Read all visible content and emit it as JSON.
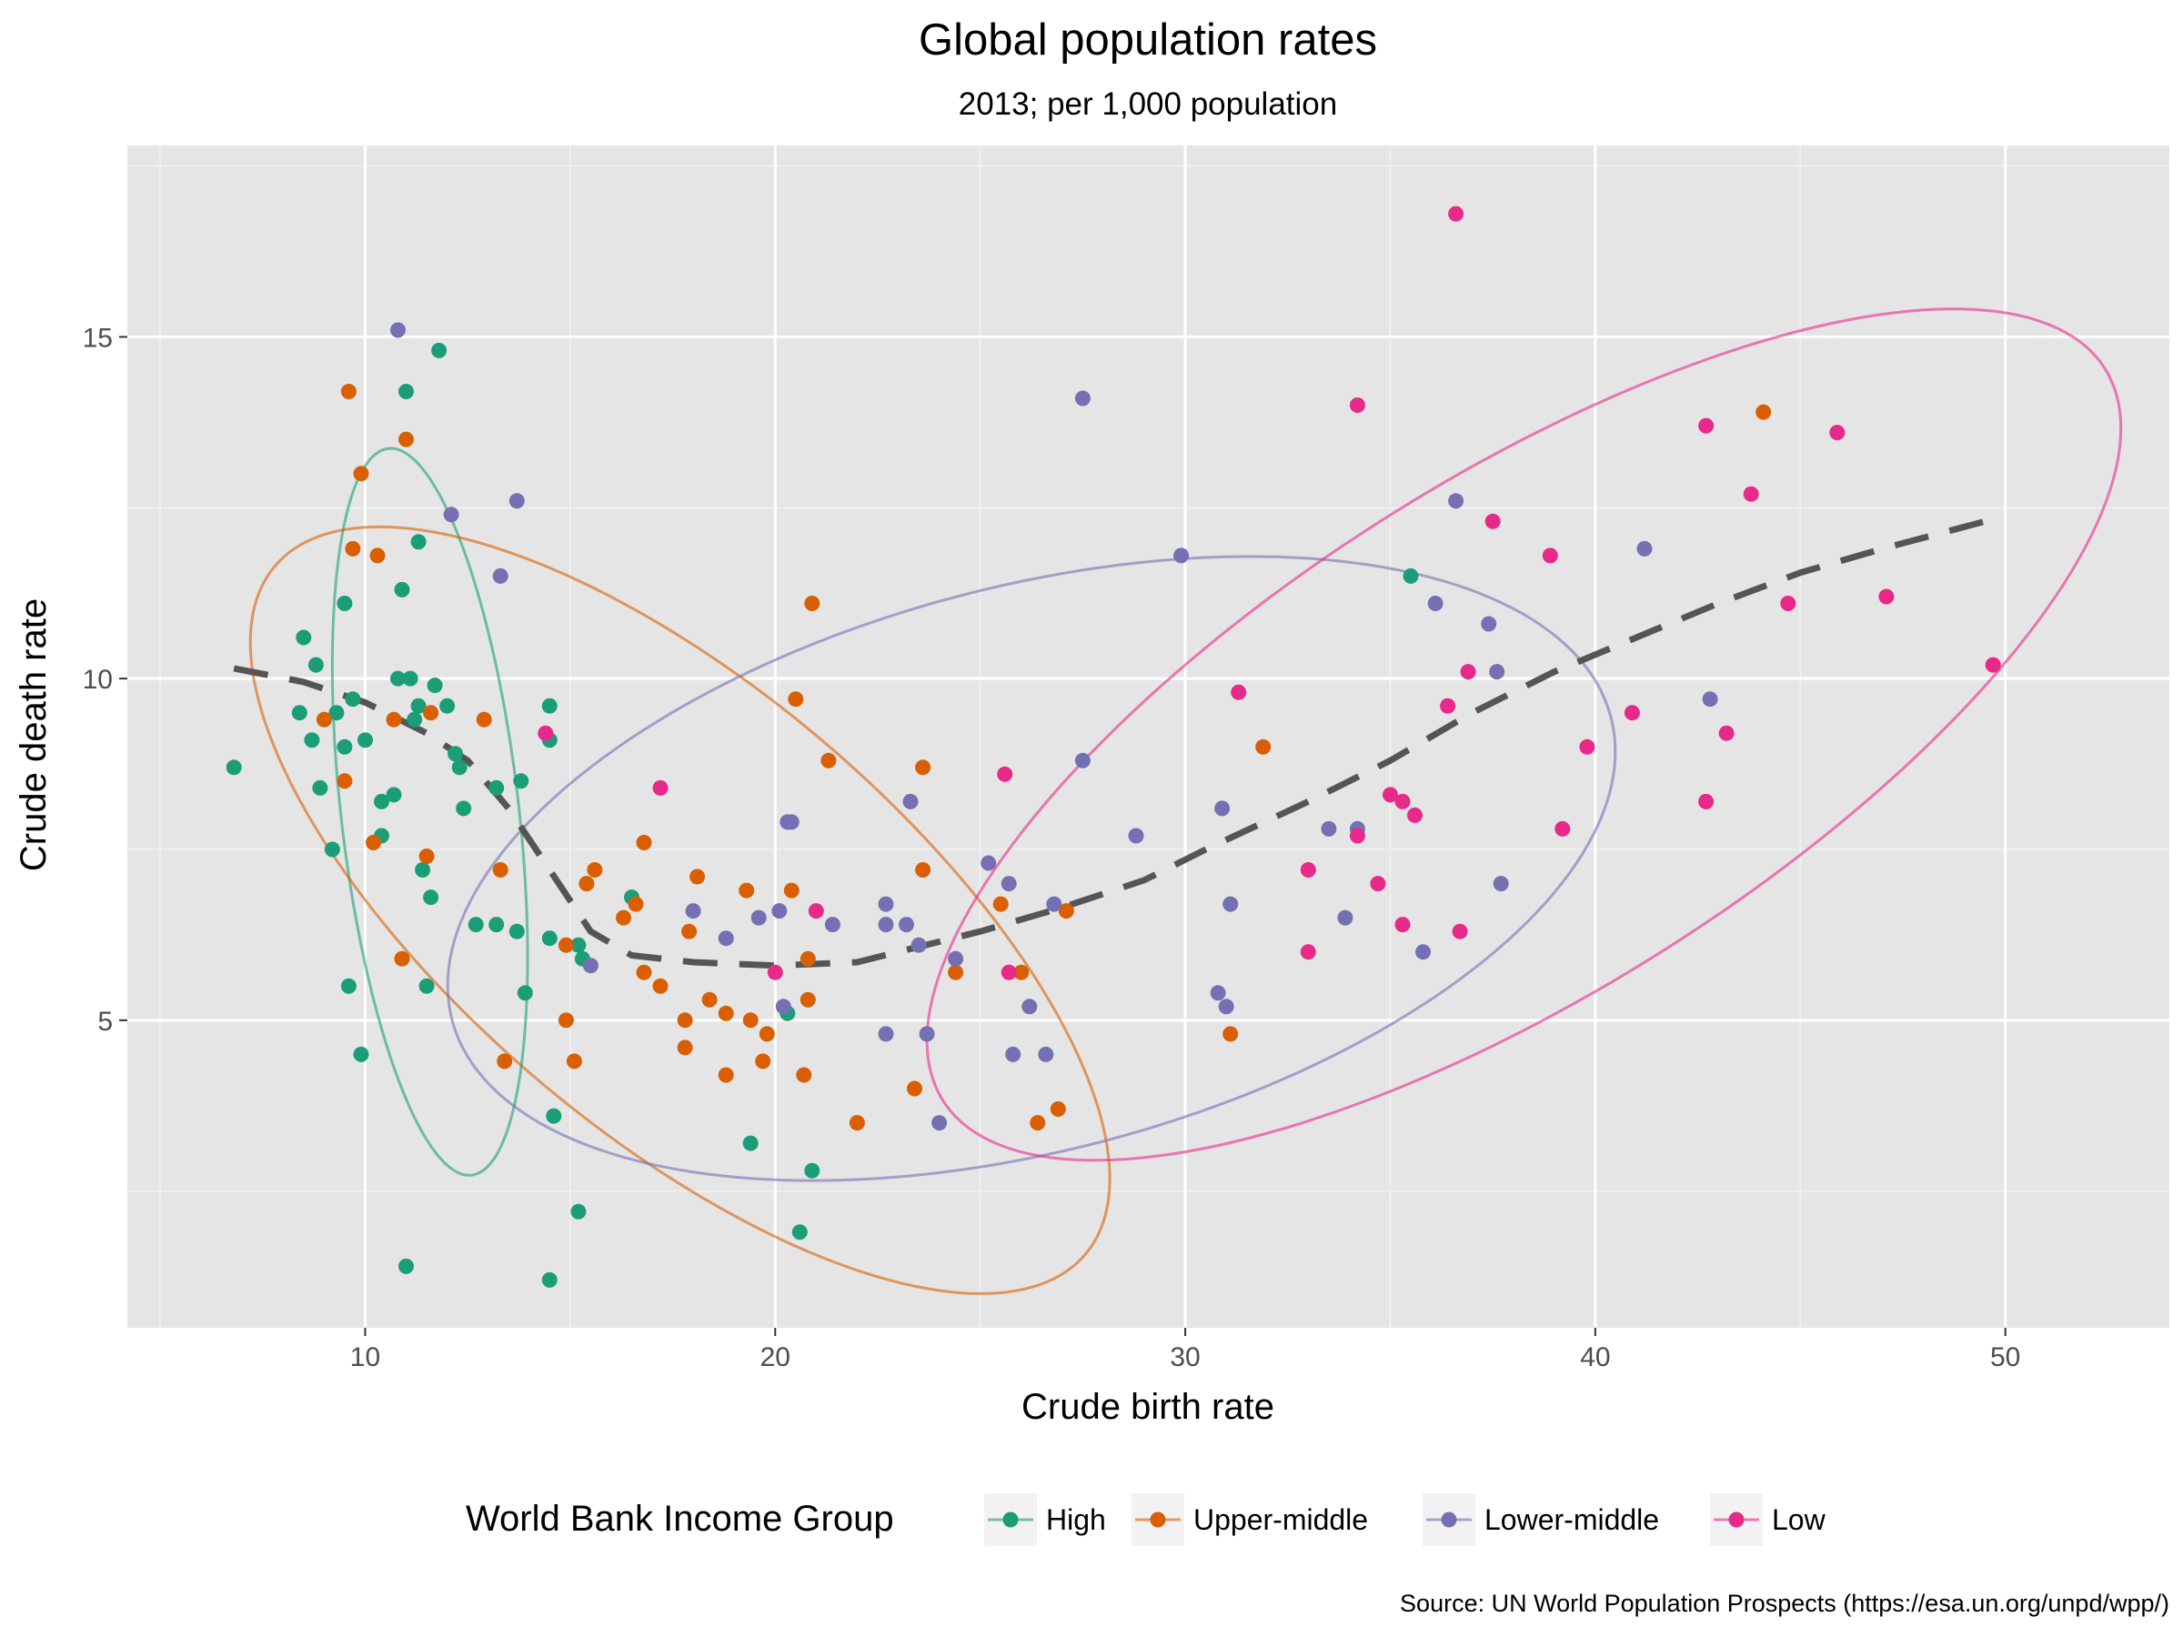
{
  "chart_data": {
    "type": "scatter",
    "title": "Global population rates",
    "subtitle": "2013; per 1,000 population",
    "xlabel": "Crude birth rate",
    "ylabel": "Crude death rate",
    "xlim": [
      4.2,
      54.0
    ],
    "ylim": [
      0.5,
      17.8
    ],
    "x_ticks": [
      "10",
      "20",
      "30",
      "40",
      "50"
    ],
    "y_ticks": [
      "5",
      "10",
      "15"
    ],
    "x_tick_values": [
      10,
      20,
      30,
      40,
      50
    ],
    "y_tick_values": [
      5,
      10,
      15
    ],
    "grid": true,
    "legend": {
      "title": "World Bank Income Group",
      "position": "bottom"
    },
    "caption": "Source: UN World Population Prospects (https://esa.un.org/unpd/wpp/)",
    "series": [
      {
        "name": "High",
        "color": "#1b9e77",
        "points": [
          [
            6.8,
            8.7
          ],
          [
            8.4,
            9.5
          ],
          [
            8.5,
            10.6
          ],
          [
            8.7,
            9.1
          ],
          [
            8.8,
            10.2
          ],
          [
            8.9,
            8.4
          ],
          [
            9.2,
            7.5
          ],
          [
            9.3,
            9.5
          ],
          [
            9.5,
            9.0
          ],
          [
            9.5,
            11.1
          ],
          [
            9.6,
            5.5
          ],
          [
            9.7,
            9.7
          ],
          [
            9.9,
            4.5
          ],
          [
            10.0,
            9.1
          ],
          [
            10.4,
            8.2
          ],
          [
            10.4,
            7.7
          ],
          [
            10.7,
            8.3
          ],
          [
            10.8,
            10.0
          ],
          [
            10.9,
            11.3
          ],
          [
            11.0,
            14.2
          ],
          [
            11.1,
            10.0
          ],
          [
            11.2,
            9.4
          ],
          [
            11.3,
            9.6
          ],
          [
            11.3,
            12.0
          ],
          [
            11.4,
            7.2
          ],
          [
            11.5,
            5.5
          ],
          [
            11.6,
            6.8
          ],
          [
            11.7,
            9.9
          ],
          [
            11.8,
            14.8
          ],
          [
            12.0,
            9.6
          ],
          [
            12.2,
            8.9
          ],
          [
            12.3,
            8.7
          ],
          [
            12.4,
            8.1
          ],
          [
            12.7,
            6.4
          ],
          [
            13.2,
            6.4
          ],
          [
            13.2,
            8.4
          ],
          [
            13.7,
            6.3
          ],
          [
            13.8,
            8.5
          ],
          [
            13.9,
            5.4
          ],
          [
            14.5,
            9.6
          ],
          [
            14.5,
            9.1
          ],
          [
            14.5,
            6.2
          ],
          [
            14.6,
            3.6
          ],
          [
            15.2,
            2.2
          ],
          [
            15.2,
            6.1
          ],
          [
            15.3,
            5.9
          ],
          [
            16.5,
            6.8
          ],
          [
            19.4,
            3.2
          ],
          [
            20.3,
            5.1
          ],
          [
            20.6,
            1.9
          ],
          [
            20.9,
            2.8
          ],
          [
            35.5,
            11.5
          ],
          [
            11.0,
            1.4
          ],
          [
            14.5,
            1.2
          ]
        ]
      },
      {
        "name": "Upper-middle",
        "color": "#d95f02",
        "points": [
          [
            9.0,
            9.4
          ],
          [
            9.5,
            8.5
          ],
          [
            9.6,
            14.2
          ],
          [
            9.7,
            11.9
          ],
          [
            9.9,
            13.0
          ],
          [
            10.3,
            11.8
          ],
          [
            10.2,
            7.6
          ],
          [
            10.7,
            9.4
          ],
          [
            10.9,
            5.9
          ],
          [
            11.0,
            13.5
          ],
          [
            11.5,
            7.4
          ],
          [
            11.6,
            9.5
          ],
          [
            12.9,
            9.4
          ],
          [
            13.3,
            7.2
          ],
          [
            13.4,
            4.4
          ],
          [
            14.9,
            6.1
          ],
          [
            14.9,
            5.0
          ],
          [
            15.1,
            4.4
          ],
          [
            15.4,
            7.0
          ],
          [
            15.6,
            7.2
          ],
          [
            16.3,
            6.5
          ],
          [
            16.6,
            6.7
          ],
          [
            16.8,
            7.6
          ],
          [
            16.8,
            5.7
          ],
          [
            17.2,
            5.5
          ],
          [
            17.8,
            4.6
          ],
          [
            17.8,
            5.0
          ],
          [
            17.9,
            6.3
          ],
          [
            18.1,
            7.1
          ],
          [
            18.4,
            5.3
          ],
          [
            18.8,
            5.1
          ],
          [
            18.8,
            4.2
          ],
          [
            19.3,
            6.9
          ],
          [
            19.4,
            5.0
          ],
          [
            19.7,
            4.4
          ],
          [
            19.8,
            4.8
          ],
          [
            20.4,
            6.9
          ],
          [
            20.5,
            9.7
          ],
          [
            20.7,
            4.2
          ],
          [
            20.8,
            5.3
          ],
          [
            20.8,
            5.9
          ],
          [
            20.9,
            11.1
          ],
          [
            21.3,
            8.8
          ],
          [
            22.0,
            3.5
          ],
          [
            23.4,
            4.0
          ],
          [
            23.6,
            8.7
          ],
          [
            23.6,
            7.2
          ],
          [
            24.4,
            5.7
          ],
          [
            25.5,
            6.7
          ],
          [
            26.0,
            5.7
          ],
          [
            26.4,
            3.5
          ],
          [
            26.9,
            3.7
          ],
          [
            27.1,
            6.6
          ],
          [
            31.1,
            4.8
          ],
          [
            31.9,
            9.0
          ],
          [
            44.1,
            13.9
          ]
        ]
      },
      {
        "name": "Lower-middle",
        "color": "#7570b3",
        "points": [
          [
            10.8,
            15.1
          ],
          [
            12.1,
            12.4
          ],
          [
            13.3,
            11.5
          ],
          [
            13.7,
            12.6
          ],
          [
            15.5,
            5.8
          ],
          [
            18.0,
            6.6
          ],
          [
            18.8,
            6.2
          ],
          [
            19.6,
            6.5
          ],
          [
            20.1,
            6.6
          ],
          [
            20.2,
            5.2
          ],
          [
            20.3,
            7.9
          ],
          [
            20.4,
            7.9
          ],
          [
            21.4,
            6.4
          ],
          [
            22.7,
            6.7
          ],
          [
            22.7,
            6.4
          ],
          [
            22.7,
            4.8
          ],
          [
            23.2,
            6.4
          ],
          [
            23.3,
            8.2
          ],
          [
            23.5,
            6.1
          ],
          [
            23.7,
            4.8
          ],
          [
            24.0,
            3.5
          ],
          [
            24.4,
            5.9
          ],
          [
            25.2,
            7.3
          ],
          [
            25.7,
            7.0
          ],
          [
            25.8,
            4.5
          ],
          [
            26.2,
            5.2
          ],
          [
            26.6,
            4.5
          ],
          [
            26.8,
            6.7
          ],
          [
            27.5,
            14.1
          ],
          [
            27.5,
            8.8
          ],
          [
            28.8,
            7.7
          ],
          [
            29.9,
            11.8
          ],
          [
            30.8,
            5.4
          ],
          [
            30.9,
            8.1
          ],
          [
            31.0,
            5.2
          ],
          [
            31.1,
            6.7
          ],
          [
            33.5,
            7.8
          ],
          [
            33.9,
            6.5
          ],
          [
            34.2,
            7.8
          ],
          [
            35.8,
            6.0
          ],
          [
            36.1,
            11.1
          ],
          [
            36.6,
            12.6
          ],
          [
            37.4,
            10.8
          ],
          [
            37.6,
            10.1
          ],
          [
            37.7,
            7.0
          ],
          [
            41.2,
            11.9
          ],
          [
            42.8,
            9.7
          ]
        ]
      },
      {
        "name": "Low",
        "color": "#e7298a",
        "points": [
          [
            14.4,
            9.2
          ],
          [
            17.2,
            8.4
          ],
          [
            20.0,
            5.7
          ],
          [
            21.0,
            6.6
          ],
          [
            25.6,
            8.6
          ],
          [
            25.7,
            5.7
          ],
          [
            31.3,
            9.8
          ],
          [
            33.0,
            7.2
          ],
          [
            33.0,
            6.0
          ],
          [
            34.2,
            14.0
          ],
          [
            34.2,
            7.7
          ],
          [
            34.7,
            7.0
          ],
          [
            35.0,
            8.3
          ],
          [
            35.3,
            8.2
          ],
          [
            35.3,
            6.4
          ],
          [
            35.6,
            8.0
          ],
          [
            36.4,
            9.6
          ],
          [
            36.6,
            16.8
          ],
          [
            36.7,
            6.3
          ],
          [
            36.9,
            10.1
          ],
          [
            37.5,
            12.3
          ],
          [
            38.9,
            11.8
          ],
          [
            39.2,
            7.8
          ],
          [
            39.8,
            9.0
          ],
          [
            40.9,
            9.5
          ],
          [
            42.7,
            13.7
          ],
          [
            42.7,
            8.2
          ],
          [
            43.2,
            9.2
          ],
          [
            43.8,
            12.7
          ],
          [
            44.7,
            11.1
          ],
          [
            45.9,
            13.6
          ],
          [
            47.1,
            11.2
          ],
          [
            49.7,
            10.2
          ]
        ]
      }
    ],
    "ellipses": [
      {
        "series": "High",
        "color": "#1b9e77",
        "cx": 11.58,
        "cy": 8.05,
        "a": 5.42,
        "b": 2.14,
        "angle": -77.9
      },
      {
        "series": "Upper-middle",
        "color": "#d95f02",
        "cx": 17.68,
        "cy": 6.61,
        "a": 11.29,
        "b": 3.72,
        "angle": -23.2
      },
      {
        "series": "Lower-middle",
        "color": "#7570b3",
        "cx": 26.25,
        "cy": 7.22,
        "a": 14.35,
        "b": 4.2,
        "angle": 7.5
      },
      {
        "series": "Low",
        "color": "#e7298a",
        "cx": 38.26,
        "cy": 9.18,
        "a": 15.29,
        "b": 4.12,
        "angle": 18.5
      }
    ],
    "trend": {
      "color": "#555555",
      "points": [
        [
          6.8,
          10.15
        ],
        [
          8.5,
          9.95
        ],
        [
          10.0,
          9.65
        ],
        [
          11.5,
          9.2
        ],
        [
          12.5,
          8.8
        ],
        [
          13.5,
          8.1
        ],
        [
          14.5,
          7.2
        ],
        [
          15.5,
          6.3
        ],
        [
          16.5,
          5.95
        ],
        [
          18.0,
          5.85
        ],
        [
          20.0,
          5.8
        ],
        [
          22.0,
          5.85
        ],
        [
          23.0,
          6.0
        ],
        [
          25.0,
          6.3
        ],
        [
          27.0,
          6.65
        ],
        [
          29.0,
          7.05
        ],
        [
          30.5,
          7.5
        ],
        [
          33.0,
          8.2
        ],
        [
          35.0,
          8.8
        ],
        [
          37.0,
          9.5
        ],
        [
          39.0,
          10.1
        ],
        [
          41.0,
          10.6
        ],
        [
          43.0,
          11.1
        ],
        [
          45.0,
          11.55
        ],
        [
          47.0,
          11.9
        ],
        [
          49.5,
          12.3
        ]
      ]
    }
  }
}
